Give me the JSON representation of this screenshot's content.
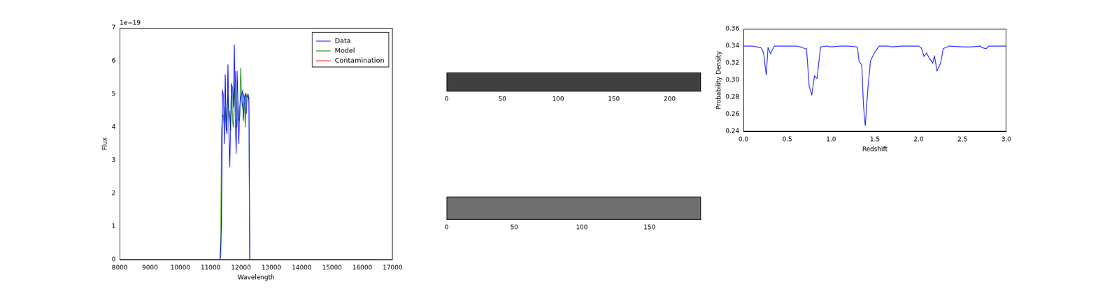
{
  "chart_data": [
    {
      "type": "line",
      "xlabel": "Wavelength",
      "ylabel": "Flux",
      "annotation": "1e−19",
      "x": [
        8000,
        11300,
        11330,
        11360,
        11390,
        11420,
        11450,
        11480,
        11510,
        11540,
        11570,
        11600,
        11630,
        11660,
        11690,
        11720,
        11750,
        11780,
        11810,
        11840,
        11870,
        11900,
        11930,
        11960,
        11990,
        12020,
        12050,
        12080,
        12110,
        12140,
        12170,
        12200,
        12230,
        12260,
        12290,
        16500
      ],
      "series": [
        {
          "name": "Data",
          "color": "#0000ff",
          "values": [
            0,
            0,
            1e-20,
            1.2e-19,
            5.1e-19,
            5e-19,
            3.5e-19,
            5.6e-19,
            4e-19,
            3.8e-19,
            5.9e-19,
            4e-19,
            2.8e-19,
            4.2e-19,
            5.3e-19,
            5.2e-19,
            4.6e-19,
            6.5e-19,
            4.4e-19,
            3.2e-19,
            5.7e-19,
            4.8e-19,
            3.5e-19,
            4.6e-19,
            4.9e-19,
            5e-19,
            5.1e-19,
            4.2e-19,
            4.9e-19,
            5e-19,
            4.4e-19,
            4.9e-19,
            5e-19,
            4.9e-19,
            0,
            0
          ]
        },
        {
          "name": "Model",
          "color": "#008000",
          "values": [
            0,
            0,
            5e-20,
            3.9e-19,
            4.4e-19,
            4.3e-19,
            4e-19,
            4.6e-19,
            3.9e-19,
            4.7e-19,
            5e-19,
            4.1e-19,
            4.5e-19,
            3.9e-19,
            5.3e-19,
            4.2e-19,
            4e-19,
            5e-19,
            5.7e-19,
            4.5e-19,
            4e-19,
            4.8e-19,
            4.2e-19,
            4.3e-19,
            5.8e-19,
            4.8e-19,
            4.6e-19,
            5e-19,
            4.9e-19,
            4e-19,
            5e-19,
            4.9e-19,
            5e-19,
            4.8e-19,
            0,
            0
          ]
        },
        {
          "name": "Contamination",
          "color": "#ff0000",
          "values": [
            0,
            0,
            0,
            0,
            0,
            0,
            0,
            0,
            0,
            0,
            0,
            0,
            0,
            0,
            0,
            0,
            0,
            0,
            0,
            0,
            0,
            0,
            0,
            0,
            0,
            0,
            0,
            0,
            0,
            0,
            0,
            0,
            0,
            0,
            0,
            0
          ]
        }
      ],
      "xlim": [
        8000,
        17000
      ],
      "xticks": [
        8000,
        9000,
        10000,
        11000,
        12000,
        13000,
        14000,
        15000,
        16000,
        17000
      ],
      "ylim": [
        0,
        7e-19
      ],
      "yticks": [
        {
          "value": 0,
          "label": "0"
        },
        {
          "value": 1e-19,
          "label": "1"
        },
        {
          "value": 2e-19,
          "label": "2"
        },
        {
          "value": 3e-19,
          "label": "3"
        },
        {
          "value": 4e-19,
          "label": "4"
        },
        {
          "value": 5e-19,
          "label": "5"
        },
        {
          "value": 6e-19,
          "label": "6"
        },
        {
          "value": 7e-19,
          "label": "7"
        }
      ],
      "legend": "upper right",
      "grid": false
    },
    {
      "type": "image",
      "xlim": [
        0,
        228
      ],
      "xticks": [
        0,
        50,
        100,
        150,
        200
      ],
      "tick_labels": "x"
    },
    {
      "type": "image",
      "xlim": [
        0,
        188
      ],
      "xticks": [
        0,
        50,
        100,
        150
      ],
      "tick_labels": "x"
    },
    {
      "type": "line",
      "xlabel": "Redshift",
      "ylabel": "Probability Density",
      "color": "#0000ff",
      "x": [
        0,
        0.1,
        0.15,
        0.2,
        0.23,
        0.26,
        0.28,
        0.31,
        0.35,
        0.5,
        0.6,
        0.65,
        0.7,
        0.72,
        0.75,
        0.78,
        0.81,
        0.84,
        0.88,
        0.95,
        1.0,
        1.1,
        1.2,
        1.3,
        1.32,
        1.35,
        1.37,
        1.39,
        1.42,
        1.45,
        1.5,
        1.55,
        1.65,
        1.7,
        1.8,
        1.9,
        2.0,
        2.03,
        2.06,
        2.09,
        2.12,
        2.16,
        2.18,
        2.21,
        2.25,
        2.28,
        2.35,
        2.5,
        2.6,
        2.7,
        2.73,
        2.77,
        2.8,
        2.9,
        3.0
      ],
      "values": [
        0.34,
        0.34,
        0.339,
        0.338,
        0.332,
        0.306,
        0.338,
        0.331,
        0.34,
        0.34,
        0.34,
        0.339,
        0.337,
        0.337,
        0.293,
        0.283,
        0.305,
        0.302,
        0.339,
        0.34,
        0.339,
        0.34,
        0.34,
        0.339,
        0.322,
        0.318,
        0.27,
        0.247,
        0.29,
        0.323,
        0.333,
        0.34,
        0.34,
        0.339,
        0.34,
        0.34,
        0.34,
        0.338,
        0.328,
        0.332,
        0.326,
        0.32,
        0.328,
        0.311,
        0.32,
        0.337,
        0.34,
        0.339,
        0.339,
        0.34,
        0.338,
        0.337,
        0.34,
        0.34,
        0.34
      ],
      "xlim": [
        0,
        3
      ],
      "xticks": [
        {
          "value": 0,
          "label": "0.0"
        },
        0.5,
        {
          "value": 1,
          "label": "1.0"
        },
        1.5,
        {
          "value": 2,
          "label": "2.0"
        },
        2.5,
        {
          "value": 3,
          "label": "3.0"
        }
      ],
      "ylim": [
        0.24,
        0.36
      ],
      "yticks": [
        0.24,
        0.26,
        0.28,
        {
          "value": 0.3,
          "label": "0.30"
        },
        0.32,
        0.34,
        0.36
      ],
      "grid": false
    }
  ]
}
